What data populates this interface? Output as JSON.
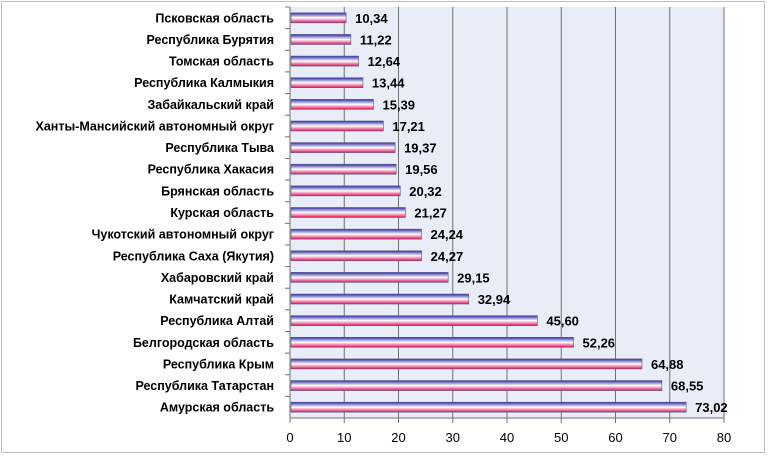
{
  "chart_data": {
    "type": "bar",
    "orientation": "horizontal",
    "title": "",
    "xlabel": "",
    "ylabel": "",
    "xlim": [
      0,
      80
    ],
    "x_ticks": [
      "0",
      "10",
      "20",
      "30",
      "40",
      "50",
      "60",
      "70",
      "80"
    ],
    "grid": true,
    "legend": "none",
    "colors": {
      "bar_top": "#2e2aa6",
      "bar_mid": "#ffffff",
      "bar_bottom": "#e0105a",
      "plot_bg": "#e8edf8",
      "grid": "#707070"
    },
    "categories": [
      "Псковская область",
      "Республика Бурятия",
      "Томская область",
      "Республика Калмыкия",
      "Забайкальский край",
      "Ханты-Мансийский автономный округ",
      "Республика Тыва",
      "Республика Хакасия",
      "Брянская область",
      "Курская область",
      "Чукотский автономный округ",
      "Республика Саха (Якутия)",
      "Хабаровский край",
      "Камчатский край",
      "Республика Алтай",
      "Белгородская область",
      "Республика Крым",
      "Республика Татарстан",
      "Амурская область"
    ],
    "values": [
      10.34,
      11.22,
      12.64,
      13.44,
      15.39,
      17.21,
      19.37,
      19.56,
      20.32,
      21.27,
      24.24,
      24.27,
      29.15,
      32.94,
      45.6,
      52.26,
      64.88,
      68.55,
      73.02
    ],
    "value_labels": [
      "10,34",
      "11,22",
      "12,64",
      "13,44",
      "15,39",
      "17,21",
      "19,37",
      "19,56",
      "20,32",
      "21,27",
      "24,24",
      "24,27",
      "29,15",
      "32,94",
      "45,60",
      "52,26",
      "64,88",
      "68,55",
      "73,02"
    ]
  }
}
